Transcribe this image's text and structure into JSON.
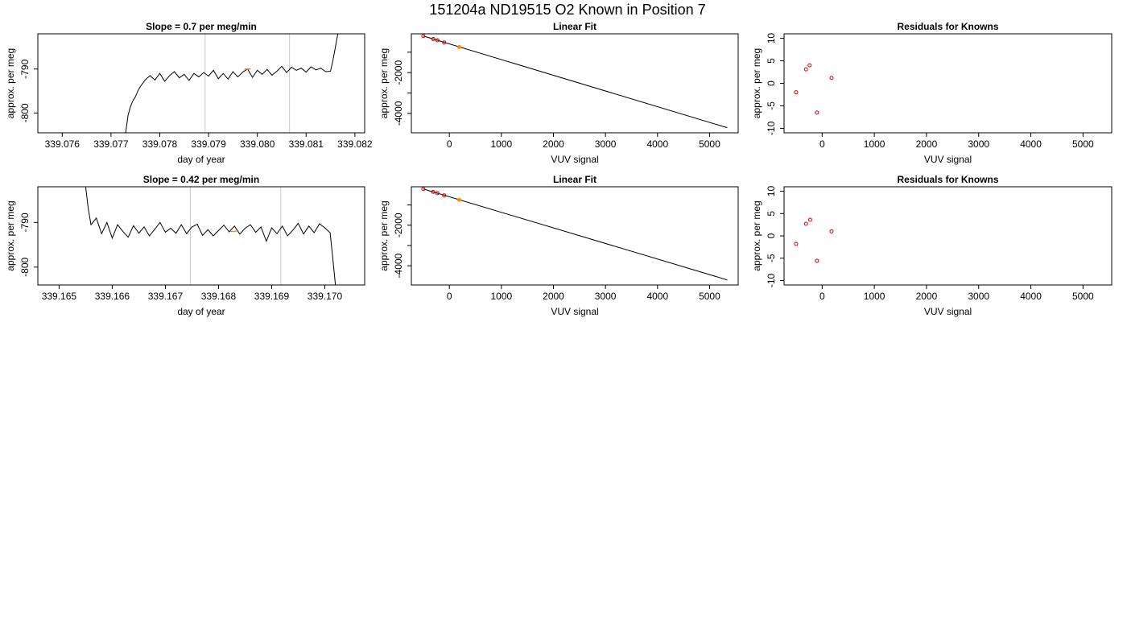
{
  "figure": {
    "title": "151204a     ND19515   O2 Known in Position  7",
    "colors": {
      "line": "#000000",
      "known_point": "#cc0000",
      "sample_point": "#ff8c00",
      "marker_line": "#c8c8c8"
    }
  },
  "chart_data": [
    {
      "type": "line",
      "title": "Slope =  0.7  per meg/min",
      "xlabel": "day of year",
      "ylabel": "approx. per meg",
      "xlim": [
        339.0755,
        339.0822
      ],
      "ylim": [
        -804.5,
        -782.0
      ],
      "xticks": [
        339.076,
        339.077,
        339.078,
        339.079,
        339.08,
        339.081,
        339.082
      ],
      "xtick_labels": [
        "339.076",
        "339.077",
        "339.078",
        "339.079",
        "339.080",
        "339.081",
        "339.082"
      ],
      "yticks": [
        -800,
        -790
      ],
      "ytick_labels": [
        "-800",
        "-790"
      ],
      "vlines": [
        339.07893,
        339.08066
      ],
      "highlight": [
        339.0798,
        -790.0
      ],
      "series": [
        {
          "x": [
            339.0773,
            339.07735,
            339.0774,
            339.07745,
            339.0775,
            339.07755,
            339.0776,
            339.0777,
            339.0778,
            339.0779,
            339.078,
            339.0781,
            339.0782,
            339.0783,
            339.0784,
            339.0785,
            339.0786,
            339.0787,
            339.0788,
            339.0789,
            339.079,
            339.0791,
            339.0792,
            339.0793,
            339.0794,
            339.0795,
            339.0796,
            339.0797,
            339.0798,
            339.0799,
            339.08,
            339.0801,
            339.0802,
            339.0803,
            339.0804,
            339.0805,
            339.0806,
            339.0807,
            339.0808,
            339.0809,
            339.081,
            339.0811,
            339.0812,
            339.0813,
            339.0814,
            339.0815,
            339.08155,
            339.0816,
            339.08165
          ],
          "y": [
            -804.5,
            -800.5,
            -798.5,
            -797.2,
            -796.3,
            -795.0,
            -794.0,
            -792.5,
            -791.5,
            -792.5,
            -791.0,
            -792.8,
            -791.5,
            -790.6,
            -792.0,
            -791.2,
            -792.6,
            -791.0,
            -791.8,
            -790.8,
            -791.6,
            -790.3,
            -792.2,
            -791.0,
            -792.3,
            -790.6,
            -791.8,
            -790.7,
            -790.0,
            -791.9,
            -790.3,
            -791.2,
            -790.1,
            -791.4,
            -790.5,
            -789.4,
            -790.8,
            -789.6,
            -790.3,
            -789.8,
            -790.7,
            -789.5,
            -790.2,
            -789.8,
            -790.6,
            -790.5,
            -788.0,
            -785.0,
            -782.0
          ]
        }
      ]
    },
    {
      "type": "scatter",
      "title": "Linear Fit",
      "xlabel": "VUV signal",
      "ylabel": "approx. per meg",
      "xlim": [
        -730,
        5550
      ],
      "ylim": [
        -4950,
        -100
      ],
      "xticks": [
        0,
        1000,
        2000,
        3000,
        4000,
        5000
      ],
      "xtick_labels": [
        "0",
        "1000",
        "2000",
        "3000",
        "4000",
        "5000"
      ],
      "yticks": [
        -4000,
        -3000,
        -2000,
        -1000
      ],
      "ytick_labels": [
        "-4000",
        "",
        "-2000",
        ""
      ],
      "fit_line": {
        "x": [
          -500,
          5340
        ],
        "y": [
          -210,
          -4700
        ]
      },
      "knowns": {
        "x": [
          -500,
          -310,
          -230,
          -100
        ],
        "y": [
          -210,
          -355,
          -415,
          -525
        ]
      },
      "sample": {
        "x": 190,
        "y": -745
      }
    },
    {
      "type": "scatter",
      "title": "Residuals for Knowns",
      "xlabel": "VUV signal",
      "ylabel": "approx. per meg",
      "xlim": [
        -730,
        5550
      ],
      "ylim": [
        -11,
        11
      ],
      "xticks": [
        0,
        1000,
        2000,
        3000,
        4000,
        5000
      ],
      "xtick_labels": [
        "0",
        "1000",
        "2000",
        "3000",
        "4000",
        "5000"
      ],
      "yticks": [
        -10,
        -5,
        0,
        5,
        10
      ],
      "ytick_labels": [
        "-10",
        "-5",
        "0",
        "5",
        "10"
      ],
      "points": {
        "x": [
          -500,
          -310,
          -240,
          -100,
          180
        ],
        "y": [
          -2.0,
          3.1,
          4.0,
          -6.5,
          1.2
        ]
      }
    },
    {
      "type": "line",
      "title": "Slope =  0.42  per meg/min",
      "xlabel": "day of year",
      "ylabel": "approx. per meg",
      "xlim": [
        339.1646,
        339.17075
      ],
      "ylim": [
        -804.0,
        -782.0
      ],
      "xticks": [
        339.165,
        339.166,
        339.167,
        339.168,
        339.169,
        339.17
      ],
      "xtick_labels": [
        "339.165",
        "339.166",
        "339.167",
        "339.168",
        "339.169",
        "339.170"
      ],
      "yticks": [
        -800,
        -790
      ],
      "ytick_labels": [
        "-800",
        "-790"
      ],
      "vlines": [
        339.16747,
        339.16917
      ],
      "highlight": [
        339.16828,
        -792.0
      ],
      "series": [
        {
          "x": [
            339.1655,
            339.16555,
            339.1656,
            339.1657,
            339.1658,
            339.1659,
            339.166,
            339.1661,
            339.1662,
            339.1663,
            339.1664,
            339.1665,
            339.1666,
            339.1667,
            339.1668,
            339.1669,
            339.167,
            339.1671,
            339.1672,
            339.1673,
            339.1674,
            339.1675,
            339.1676,
            339.1677,
            339.1678,
            339.1679,
            339.168,
            339.1681,
            339.1682,
            339.1683,
            339.1684,
            339.1685,
            339.1686,
            339.1687,
            339.1688,
            339.1689,
            339.169,
            339.1691,
            339.1692,
            339.1693,
            339.1694,
            339.1695,
            339.1696,
            339.1697,
            339.1698,
            339.1699,
            339.17,
            339.1701,
            339.17015,
            339.1702
          ],
          "y": [
            -782.0,
            -787.0,
            -790.5,
            -789.0,
            -792.5,
            -790.0,
            -793.5,
            -790.5,
            -792.0,
            -793.3,
            -790.7,
            -792.4,
            -791.0,
            -793.0,
            -791.5,
            -790.0,
            -792.2,
            -791.3,
            -792.4,
            -790.5,
            -792.5,
            -791.0,
            -790.4,
            -792.9,
            -791.6,
            -793.0,
            -791.8,
            -790.6,
            -792.1,
            -790.8,
            -792.6,
            -791.3,
            -790.5,
            -792.2,
            -791.0,
            -794.2,
            -791.2,
            -792.5,
            -790.8,
            -793.0,
            -791.7,
            -790.2,
            -792.6,
            -790.8,
            -792.3,
            -790.3,
            -791.2,
            -792.3,
            -798.0,
            -804.0
          ]
        }
      ]
    },
    {
      "type": "scatter",
      "title": "Linear Fit",
      "xlabel": "VUV signal",
      "ylabel": "approx. per meg",
      "xlim": [
        -730,
        5550
      ],
      "ylim": [
        -4950,
        -100
      ],
      "xticks": [
        0,
        1000,
        2000,
        3000,
        4000,
        5000
      ],
      "xtick_labels": [
        "0",
        "1000",
        "2000",
        "3000",
        "4000",
        "5000"
      ],
      "yticks": [
        -4000,
        -3000,
        -2000,
        -1000
      ],
      "ytick_labels": [
        "-4000",
        "",
        "-2000",
        ""
      ],
      "fit_line": {
        "x": [
          -500,
          5340
        ],
        "y": [
          -210,
          -4700
        ]
      },
      "knowns": {
        "x": [
          -500,
          -310,
          -230,
          -100
        ],
        "y": [
          -210,
          -355,
          -415,
          -525
        ]
      },
      "sample": {
        "x": 190,
        "y": -745
      }
    },
    {
      "type": "scatter",
      "title": "Residuals for Knowns",
      "xlabel": "VUV signal",
      "ylabel": "approx. per meg",
      "xlim": [
        -730,
        5550
      ],
      "ylim": [
        -11,
        11
      ],
      "xticks": [
        0,
        1000,
        2000,
        3000,
        4000,
        5000
      ],
      "xtick_labels": [
        "0",
        "1000",
        "2000",
        "3000",
        "4000",
        "5000"
      ],
      "yticks": [
        -10,
        -5,
        0,
        5,
        10
      ],
      "ytick_labels": [
        "-10",
        "-5",
        "0",
        "5",
        "10"
      ],
      "points": {
        "x": [
          -500,
          -310,
          -230,
          -100,
          180
        ],
        "y": [
          -1.8,
          2.7,
          3.6,
          -5.6,
          1.0
        ]
      }
    }
  ]
}
